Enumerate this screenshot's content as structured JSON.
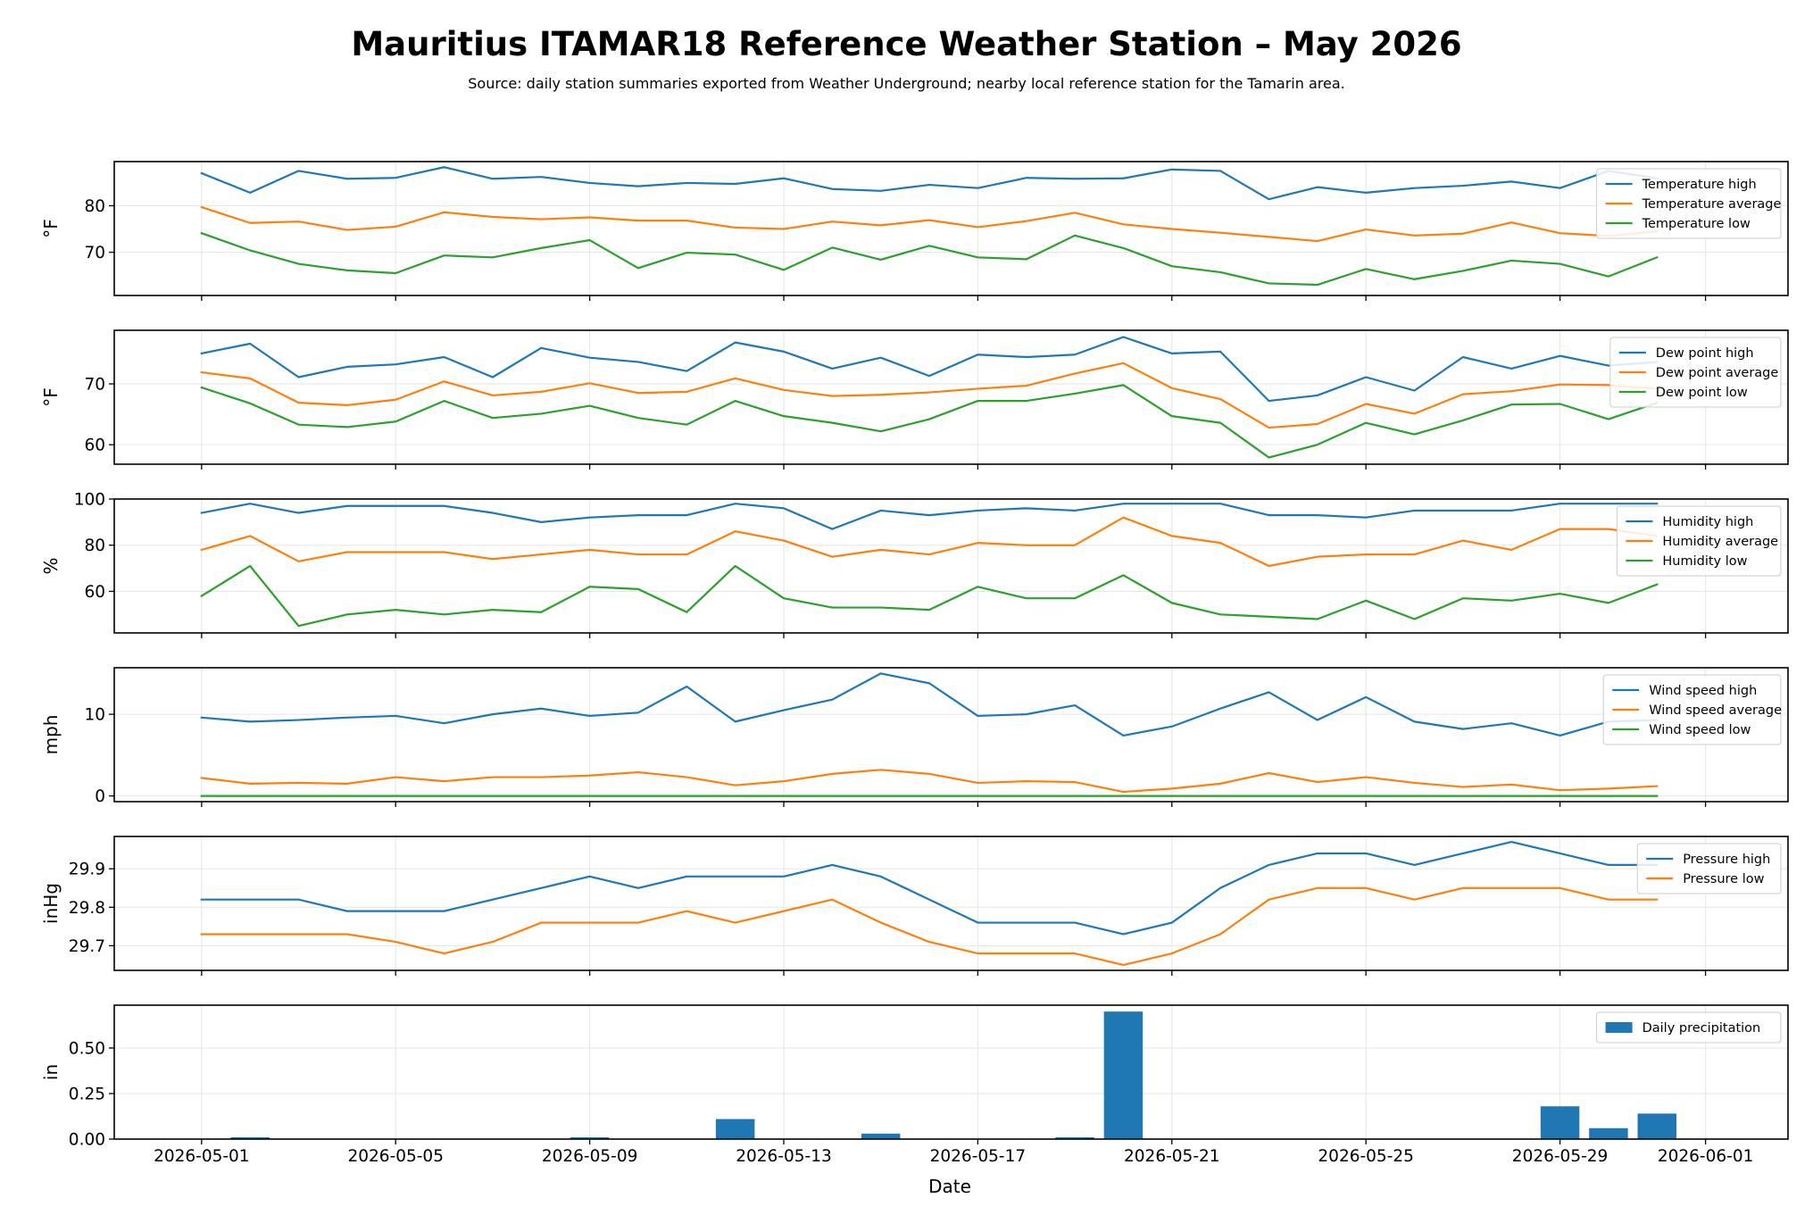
{
  "title": "Mauritius ITAMAR18 Reference Weather Station – May 2026",
  "subtitle": "Source: daily station summaries exported from Weather Underground; nearby local reference station for the Tamarin area.",
  "chart_data": {
    "type": "line",
    "xlabel": "Date",
    "x": [
      "2026-05-01",
      "2026-05-02",
      "2026-05-03",
      "2026-05-04",
      "2026-05-05",
      "2026-05-06",
      "2026-05-07",
      "2026-05-08",
      "2026-05-09",
      "2026-05-10",
      "2026-05-11",
      "2026-05-12",
      "2026-05-13",
      "2026-05-14",
      "2026-05-15",
      "2026-05-16",
      "2026-05-17",
      "2026-05-18",
      "2026-05-19",
      "2026-05-20",
      "2026-05-21",
      "2026-05-22",
      "2026-05-23",
      "2026-05-24",
      "2026-05-25",
      "2026-05-26",
      "2026-05-27",
      "2026-05-28",
      "2026-05-29",
      "2026-05-30",
      "2026-05-31"
    ],
    "xticks": [
      "2026-05-01",
      "2026-05-05",
      "2026-05-09",
      "2026-05-13",
      "2026-05-17",
      "2026-05-21",
      "2026-05-25",
      "2026-05-29",
      "2026-06-01"
    ],
    "grid": true,
    "legend_position": "top-right",
    "colors": {
      "high": "#1f77b4",
      "average": "#ff7f0e",
      "low": "#2ca02c"
    },
    "panels": [
      {
        "ylabel": "°F",
        "ylim": [
          60.7,
          89.5
        ],
        "yticks": [
          70,
          80
        ],
        "series": [
          {
            "name": "Temperature high",
            "color": "#1f77b4",
            "values": [
              87.0,
              82.8,
              87.5,
              85.8,
              86.0,
              88.3,
              85.8,
              86.2,
              84.9,
              84.2,
              84.9,
              84.7,
              85.9,
              83.6,
              83.2,
              84.5,
              83.8,
              86.0,
              85.8,
              85.9,
              87.8,
              87.5,
              81.4,
              84.0,
              82.8,
              83.8,
              84.3,
              85.2,
              83.8,
              87.5,
              85.9
            ]
          },
          {
            "name": "Temperature average",
            "color": "#ff7f0e",
            "values": [
              79.7,
              76.3,
              76.6,
              74.8,
              75.5,
              78.6,
              77.6,
              77.1,
              77.5,
              76.8,
              76.8,
              75.3,
              75.0,
              76.6,
              75.8,
              76.9,
              75.4,
              76.7,
              78.5,
              76.0,
              75.0,
              74.2,
              73.3,
              72.4,
              74.9,
              73.6,
              74.0,
              76.4,
              74.1,
              73.5,
              74.5
            ]
          },
          {
            "name": "Temperature low",
            "color": "#2ca02c",
            "values": [
              74.1,
              70.4,
              67.5,
              66.1,
              65.5,
              69.3,
              68.9,
              70.9,
              72.6,
              66.6,
              69.9,
              69.5,
              66.2,
              71.0,
              68.4,
              71.4,
              68.9,
              68.5,
              73.6,
              70.9,
              67.0,
              65.7,
              63.3,
              63.0,
              66.4,
              64.2,
              66.0,
              68.2,
              67.5,
              64.8,
              68.9
            ]
          }
        ]
      },
      {
        "ylabel": "°F",
        "ylim": [
          56.8,
          78.8
        ],
        "yticks": [
          60,
          70
        ],
        "series": [
          {
            "name": "Dew point high",
            "color": "#1f77b4",
            "values": [
              75.0,
              76.6,
              71.1,
              72.8,
              73.2,
              74.4,
              71.1,
              75.9,
              74.3,
              73.6,
              72.1,
              76.8,
              75.3,
              72.5,
              74.3,
              71.3,
              74.8,
              74.4,
              74.8,
              77.7,
              75.0,
              75.3,
              67.2,
              68.1,
              71.1,
              68.9,
              74.4,
              72.5,
              74.6,
              73.0,
              73.6
            ]
          },
          {
            "name": "Dew point average",
            "color": "#ff7f0e",
            "values": [
              71.9,
              70.9,
              66.9,
              66.5,
              67.4,
              70.4,
              68.1,
              68.7,
              70.1,
              68.5,
              68.7,
              70.9,
              69.0,
              68.0,
              68.2,
              68.6,
              69.2,
              69.7,
              71.7,
              73.4,
              69.3,
              67.5,
              62.8,
              63.4,
              66.7,
              65.1,
              68.3,
              68.8,
              69.9,
              69.8,
              69.2
            ]
          },
          {
            "name": "Dew point low",
            "color": "#2ca02c",
            "values": [
              69.4,
              66.8,
              63.3,
              62.9,
              63.8,
              67.2,
              64.4,
              65.1,
              66.4,
              64.4,
              63.3,
              67.2,
              64.7,
              63.6,
              62.2,
              64.2,
              67.2,
              67.2,
              68.4,
              69.8,
              64.7,
              63.6,
              57.9,
              60.0,
              63.6,
              61.7,
              64.0,
              66.6,
              66.7,
              64.2,
              66.9
            ]
          }
        ]
      },
      {
        "ylabel": "%",
        "ylim": [
          42.0,
          100.0
        ],
        "yticks": [
          60,
          80,
          100
        ],
        "series": [
          {
            "name": "Humidity high",
            "color": "#1f77b4",
            "values": [
              94,
              98,
              94,
              97,
              97,
              97,
              94,
              90,
              92,
              93,
              93,
              98,
              96,
              87,
              95,
              93,
              95,
              96,
              95,
              98,
              98,
              98,
              93,
              93,
              92,
              95,
              95,
              95,
              98,
              98,
              98
            ]
          },
          {
            "name": "Humidity average",
            "color": "#ff7f0e",
            "values": [
              78,
              84,
              73,
              77,
              77,
              77,
              74,
              76,
              78,
              76,
              76,
              86,
              82,
              75,
              78,
              76,
              81,
              80,
              80,
              92,
              84,
              81,
              71,
              75,
              76,
              76,
              82,
              78,
              87,
              87,
              84
            ]
          },
          {
            "name": "Humidity low",
            "color": "#2ca02c",
            "values": [
              58,
              71,
              45,
              50,
              52,
              50,
              52,
              51,
              62,
              61,
              51,
              71,
              57,
              53,
              53,
              52,
              62,
              57,
              57,
              67,
              55,
              50,
              49,
              48,
              56,
              48,
              57,
              56,
              59,
              55,
              63
            ]
          }
        ]
      },
      {
        "ylabel": "mph",
        "ylim": [
          -0.7,
          15.7
        ],
        "yticks": [
          0,
          10
        ],
        "series": [
          {
            "name": "Wind speed high",
            "color": "#1f77b4",
            "values": [
              9.6,
              9.1,
              9.3,
              9.6,
              9.8,
              8.9,
              10.0,
              10.7,
              9.8,
              10.2,
              13.4,
              9.1,
              10.5,
              11.8,
              15.0,
              13.8,
              9.8,
              10.0,
              11.1,
              7.4,
              8.5,
              10.7,
              12.7,
              9.3,
              12.1,
              9.1,
              8.2,
              8.9,
              7.4,
              9.1,
              9.3
            ]
          },
          {
            "name": "Wind speed average",
            "color": "#ff7f0e",
            "values": [
              2.2,
              1.5,
              1.6,
              1.5,
              2.3,
              1.8,
              2.3,
              2.3,
              2.5,
              2.9,
              2.3,
              1.3,
              1.8,
              2.7,
              3.2,
              2.7,
              1.6,
              1.8,
              1.7,
              0.5,
              0.9,
              1.5,
              2.8,
              1.7,
              2.3,
              1.6,
              1.1,
              1.4,
              0.7,
              0.9,
              1.2
            ]
          },
          {
            "name": "Wind speed low",
            "color": "#2ca02c",
            "values": [
              0,
              0,
              0,
              0,
              0,
              0,
              0,
              0,
              0,
              0,
              0,
              0,
              0,
              0,
              0,
              0,
              0,
              0,
              0,
              0,
              0,
              0,
              0,
              0,
              0,
              0,
              0,
              0,
              0,
              0,
              0
            ]
          }
        ]
      },
      {
        "ylabel": "inHg",
        "ylim": [
          29.636,
          29.984
        ],
        "yticks": [
          29.7,
          29.8,
          29.9
        ],
        "series": [
          {
            "name": "Pressure high",
            "color": "#1f77b4",
            "values": [
              29.82,
              29.82,
              29.82,
              29.79,
              29.79,
              29.79,
              29.82,
              29.85,
              29.88,
              29.85,
              29.88,
              29.88,
              29.88,
              29.91,
              29.88,
              29.82,
              29.76,
              29.76,
              29.76,
              29.73,
              29.76,
              29.85,
              29.91,
              29.94,
              29.94,
              29.91,
              29.94,
              29.97,
              29.94,
              29.91,
              29.91
            ]
          },
          {
            "name": "Pressure low",
            "color": "#ff7f0e",
            "values": [
              29.73,
              29.73,
              29.73,
              29.73,
              29.71,
              29.68,
              29.71,
              29.76,
              29.76,
              29.76,
              29.79,
              29.76,
              29.79,
              29.82,
              29.76,
              29.71,
              29.68,
              29.68,
              29.68,
              29.65,
              29.68,
              29.73,
              29.82,
              29.85,
              29.85,
              29.82,
              29.85,
              29.85,
              29.85,
              29.82,
              29.82
            ]
          }
        ]
      },
      {
        "type": "bar",
        "ylabel": "in",
        "ylim": [
          0,
          0.735
        ],
        "yticks": [
          0.0,
          0.25,
          0.5
        ],
        "ytick_labels": [
          "0.00",
          "0.25",
          "0.50"
        ],
        "series": [
          {
            "name": "Daily precipitation",
            "color": "#1f77b4",
            "values": [
              0,
              0.01,
              0,
              0,
              0,
              0,
              0,
              0,
              0.01,
              0,
              0,
              0.11,
              0,
              0,
              0.03,
              0,
              0,
              0,
              0.01,
              0.7,
              0,
              0,
              0,
              0,
              0,
              0,
              0,
              0,
              0.18,
              0.06,
              0.14
            ]
          }
        ]
      }
    ]
  }
}
